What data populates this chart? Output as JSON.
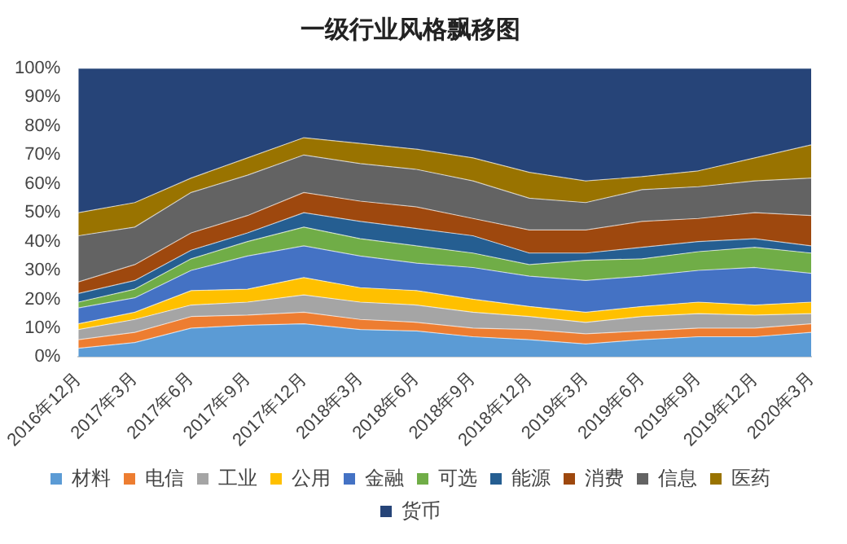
{
  "chart_data": {
    "type": "area",
    "title": "一级行业风格飘移图",
    "stacked": true,
    "legend": "bottom",
    "grid": false,
    "categories": [
      "2016年12月",
      "2017年3月",
      "2017年6月",
      "2017年9月",
      "2017年12月",
      "2018年3月",
      "2018年6月",
      "2018年9月",
      "2018年12月",
      "2019年3月",
      "2019年6月",
      "2019年9月",
      "2019年12月",
      "2020年3月"
    ],
    "ylim": [
      0,
      100
    ],
    "yticks": [
      {
        "value": 0,
        "label": "0%"
      },
      {
        "value": 10,
        "label": "10%"
      },
      {
        "value": 20,
        "label": "20%"
      },
      {
        "value": 30,
        "label": "30%"
      },
      {
        "value": 40,
        "label": "40%"
      },
      {
        "value": 50,
        "label": "50%"
      },
      {
        "value": 60,
        "label": "60%"
      },
      {
        "value": 70,
        "label": "70%"
      },
      {
        "value": 80,
        "label": "80%"
      },
      {
        "value": 90,
        "label": "90%"
      },
      {
        "value": 100,
        "label": "100%"
      }
    ],
    "series": [
      {
        "name": "材料",
        "color": "#5b9bd5",
        "values": [
          3,
          5,
          10,
          11,
          11.5,
          9.5,
          9,
          7,
          6,
          4.5,
          6,
          7,
          7,
          8.5
        ]
      },
      {
        "name": "电信",
        "color": "#ed7d31",
        "values": [
          3,
          3.5,
          4,
          3.5,
          4,
          3.5,
          3,
          3,
          3.5,
          3.5,
          3,
          3,
          3,
          3
        ]
      },
      {
        "name": "工业",
        "color": "#a5a5a5",
        "values": [
          3.5,
          4.5,
          4,
          4.5,
          6,
          6,
          6,
          5.5,
          4.5,
          4,
          5,
          5,
          4.5,
          3.5
        ]
      },
      {
        "name": "公用",
        "color": "#ffc000",
        "values": [
          2,
          2.5,
          5,
          4.5,
          6,
          5,
          5,
          4.5,
          3.5,
          3.5,
          3.5,
          4,
          3.5,
          4
        ]
      },
      {
        "name": "金融",
        "color": "#4472c4",
        "values": [
          5.5,
          5,
          7,
          11.5,
          11,
          11,
          9.5,
          11,
          10.5,
          11,
          10.5,
          11,
          13,
          10
        ]
      },
      {
        "name": "可选",
        "color": "#70ad47",
        "values": [
          2,
          3,
          4,
          5,
          6.5,
          6,
          6,
          5,
          4,
          7,
          6,
          6.5,
          7,
          7
        ]
      },
      {
        "name": "能源",
        "color": "#255e91",
        "values": [
          3,
          3,
          3,
          3,
          5,
          6,
          6,
          6,
          4,
          2.5,
          4,
          3.5,
          3,
          2.5
        ]
      },
      {
        "name": "消费",
        "color": "#9e480e",
        "values": [
          4,
          5.5,
          6,
          6,
          7,
          7,
          7.5,
          6,
          8,
          8,
          9,
          8,
          9,
          10.5
        ]
      },
      {
        "name": "信息",
        "color": "#636363",
        "values": [
          16,
          13,
          14,
          14,
          13,
          13,
          13,
          13,
          11,
          9.5,
          11,
          11,
          11,
          13
        ]
      },
      {
        "name": "医药",
        "color": "#997300",
        "values": [
          8,
          8.5,
          5,
          6,
          6,
          7,
          7,
          8,
          9,
          7.5,
          4.5,
          5.5,
          8,
          11.5
        ]
      },
      {
        "name": "货币",
        "color": "#264478",
        "values": [
          50,
          46.5,
          38,
          31,
          24,
          26,
          28,
          31,
          36,
          39,
          37.5,
          35.5,
          31,
          26.5
        ]
      }
    ]
  }
}
